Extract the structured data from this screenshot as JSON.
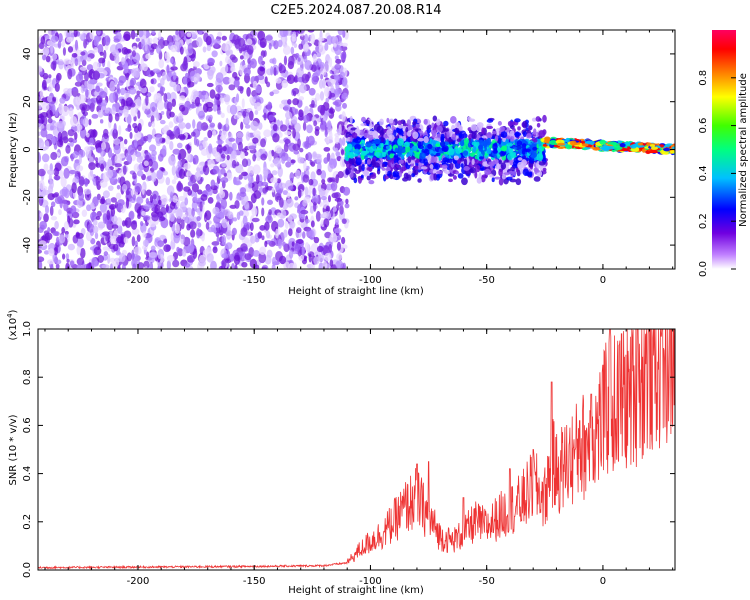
{
  "figure": {
    "title": "C2E5.2024.087.20.08.R14"
  },
  "colors": {
    "snr_line": "#ee3333",
    "spectrogram_noise": "#7a2be0",
    "colorbar": [
      "#ffffff",
      "#c080ff",
      "#7000e0",
      "#0000ff",
      "#00c0ff",
      "#00ff80",
      "#40ff00",
      "#ffff00",
      "#ff8000",
      "#ff0000",
      "#ff0060"
    ]
  },
  "chart_data": [
    {
      "type": "heatmap",
      "title": "C2E5.2024.087.20.08.R14",
      "xlabel": "Height of straight line (km)",
      "ylabel": "Frequency (Hz)",
      "xlim": [
        -243,
        31
      ],
      "ylim": [
        -50,
        50
      ],
      "xticks": [
        -200,
        -150,
        -100,
        -50,
        0
      ],
      "xtick_labels": [
        "-200",
        "-150",
        "-100",
        "-50",
        "0"
      ],
      "yticks": [
        -40,
        -20,
        0,
        20,
        40
      ],
      "ytick_labels": [
        "-40",
        "-20",
        "0",
        "20",
        "40"
      ],
      "colorbar": {
        "label": "Normalized spectral amplitude",
        "range": [
          0.0,
          1.0
        ],
        "ticks": [
          0.0,
          0.2,
          0.4,
          0.6,
          0.8
        ],
        "tick_labels": [
          "0.0",
          "0.2",
          "0.4",
          "0.6",
          "0.8"
        ]
      },
      "regions": [
        {
          "name": "broadband noise",
          "x_range": [
            -243,
            -110
          ],
          "freq_range": [
            -50,
            50
          ],
          "amplitude": 0.15
        },
        {
          "name": "signal band",
          "x_range": [
            -110,
            -25
          ],
          "freq_center": 0,
          "freq_halfwidth": 10,
          "amplitude": 0.3
        },
        {
          "name": "narrow carrier",
          "x_range": [
            -25,
            31
          ],
          "freq_center_start": 3,
          "freq_center_end": 0,
          "freq_halfwidth": 2,
          "amplitude": 0.9
        }
      ],
      "grid": false
    },
    {
      "type": "line",
      "xlabel": "Height of straight line (km)",
      "ylabel": "SNR (10 * v/v)",
      "y_multiplier": "(x10",
      "y_multiplier_exp": "4",
      "y_multiplier_close": ")",
      "xlim": [
        -243,
        31
      ],
      "ylim": [
        0.0,
        1.0
      ],
      "xticks": [
        -200,
        -150,
        -100,
        -50,
        0
      ],
      "xtick_labels": [
        "-200",
        "-150",
        "-100",
        "-50",
        "0"
      ],
      "yticks": [
        0.0,
        0.2,
        0.4,
        0.6,
        0.8,
        1.0
      ],
      "ytick_labels": [
        "0.0",
        "0.2",
        "0.4",
        "0.6",
        "0.8",
        "1.0"
      ],
      "series": [
        {
          "x": [
            -243,
            -200,
            -150,
            -120,
            -110,
            -105,
            -100,
            -95,
            -90,
            -85,
            -80,
            -75,
            -70,
            -65,
            -60,
            -55,
            -50,
            -45,
            -40,
            -35,
            -30,
            -25,
            -22,
            -20,
            -15,
            -10,
            -5,
            0,
            3,
            5,
            10,
            15,
            20,
            25,
            31
          ],
          "y": [
            0.01,
            0.012,
            0.015,
            0.018,
            0.03,
            0.08,
            0.12,
            0.15,
            0.2,
            0.26,
            0.3,
            0.22,
            0.14,
            0.12,
            0.15,
            0.2,
            0.18,
            0.22,
            0.25,
            0.28,
            0.35,
            0.3,
            0.45,
            0.4,
            0.45,
            0.5,
            0.55,
            0.62,
            0.7,
            0.68,
            0.72,
            0.78,
            0.85,
            0.9,
            0.93
          ],
          "spikes": [
            [
              -80,
              0.44
            ],
            [
              -75,
              0.45
            ],
            [
              -60,
              0.3
            ],
            [
              -40,
              0.42
            ],
            [
              -30,
              0.5
            ],
            [
              -22,
              0.78
            ],
            [
              -10,
              0.62
            ],
            [
              -5,
              0.73
            ],
            [
              0,
              0.85
            ],
            [
              3,
              1.0
            ],
            [
              8,
              0.98
            ],
            [
              15,
              1.0
            ],
            [
              25,
              0.97
            ]
          ]
        }
      ],
      "grid": false
    }
  ]
}
